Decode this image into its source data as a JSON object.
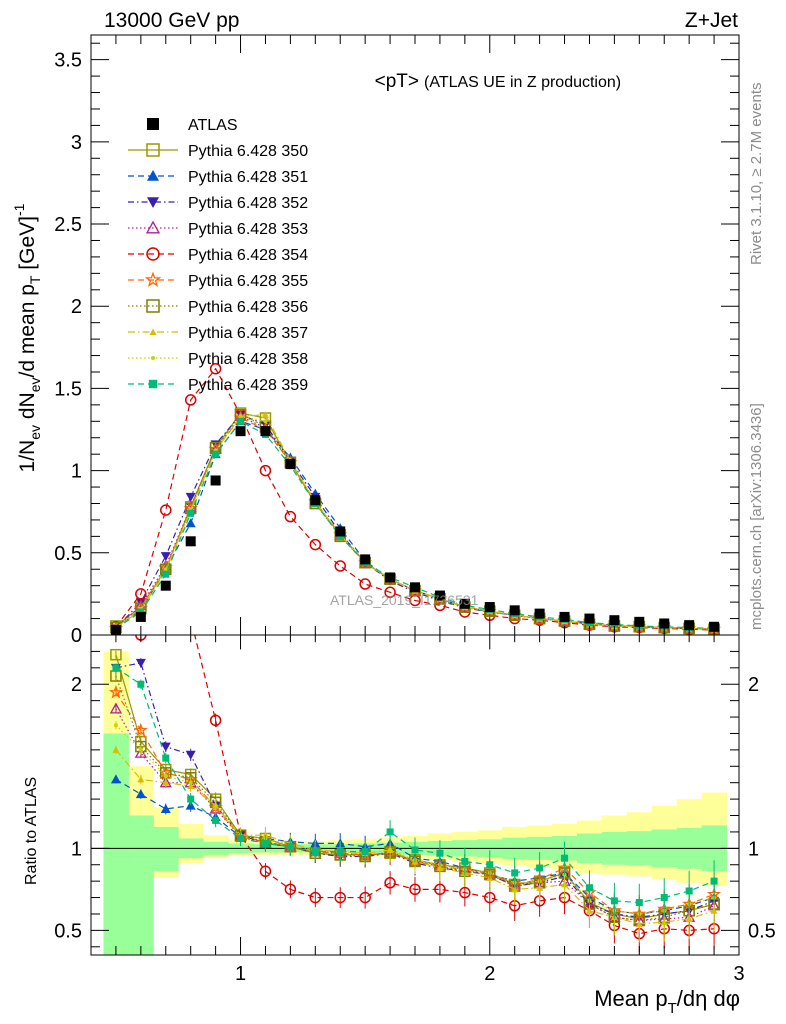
{
  "header": {
    "left": "13000 GeV pp",
    "right": "Z+Jet",
    "plot_title": "<pT>",
    "plot_subtitle": "(ATLAS UE in Z production)",
    "watermark": "ATLAS_2019_I1736531"
  },
  "side_labels": {
    "rivet": "Rivet 3.1.10, ≥ 2.7M events",
    "mcplots": "mcplots.cern.ch [arXiv:1306.3436]"
  },
  "axes": {
    "ylabel_top": "1/N_ev dN_ev/d mean p_T [GeV]^-1",
    "ylabel_top_parts": {
      "a": "1/N",
      "b": "ev",
      "c": " dN",
      "d": "ev",
      "e": "/d mean p",
      "f": "T",
      "g": " [GeV]",
      "h": "-1"
    },
    "ylabel_bottom": "Ratio to ATLAS",
    "xlabel": "Mean p_T/dη dφ",
    "xlabel_parts": {
      "a": "Mean p",
      "b": "T",
      "c": "/dη dφ"
    }
  },
  "chart_data": {
    "type": "scatter",
    "x": [
      0.5,
      0.6,
      0.7,
      0.8,
      0.9,
      1.0,
      1.1,
      1.2,
      1.3,
      1.4,
      1.5,
      1.6,
      1.7,
      1.8,
      1.9,
      2.0,
      2.1,
      2.2,
      2.3,
      2.4,
      2.5,
      2.6,
      2.7,
      2.8,
      2.9
    ],
    "xlim": [
      0.4,
      3.0
    ],
    "xticks": [
      1,
      2,
      3
    ],
    "ylim_main": [
      0,
      3.65
    ],
    "yticks_main": [
      0,
      0.5,
      1,
      1.5,
      2,
      2.5,
      3,
      3.5
    ],
    "ytick_labels_main": [
      "0",
      "0.5",
      "1",
      "1.5",
      "2",
      "2.5",
      "3",
      "3.5"
    ],
    "ylim_ratio": [
      0.35,
      2.3
    ],
    "yticks_ratio": [
      0.5,
      1,
      2
    ],
    "ytick_labels_ratio": [
      "0.5",
      "1",
      "2"
    ],
    "data": {
      "name": "ATLAS",
      "values": [
        0.03,
        0.11,
        0.3,
        0.57,
        0.94,
        1.24,
        1.24,
        1.04,
        0.82,
        0.63,
        0.46,
        0.35,
        0.29,
        0.24,
        0.19,
        0.17,
        0.15,
        0.13,
        0.11,
        0.1,
        0.09,
        0.08,
        0.07,
        0.06,
        0.05
      ]
    },
    "band_green": {
      "lo": [
        0.35,
        0.35,
        0.86,
        0.94,
        0.96,
        0.97,
        0.975,
        0.975,
        0.975,
        0.975,
        0.97,
        0.965,
        0.96,
        0.955,
        0.95,
        0.945,
        0.935,
        0.93,
        0.925,
        0.91,
        0.9,
        0.895,
        0.885,
        0.875,
        0.86
      ],
      "hi": [
        1.7,
        1.2,
        1.13,
        1.06,
        1.04,
        1.03,
        1.025,
        1.025,
        1.025,
        1.025,
        1.03,
        1.035,
        1.04,
        1.045,
        1.05,
        1.055,
        1.065,
        1.07,
        1.075,
        1.09,
        1.1,
        1.105,
        1.115,
        1.125,
        1.14
      ]
    },
    "band_yellow": {
      "lo": [
        0.35,
        0.71,
        0.82,
        0.91,
        0.94,
        0.955,
        0.96,
        0.96,
        0.96,
        0.96,
        0.955,
        0.95,
        0.94,
        0.93,
        0.92,
        0.91,
        0.895,
        0.88,
        0.87,
        0.85,
        0.84,
        0.83,
        0.81,
        0.79,
        0.77
      ],
      "hi": [
        2.2,
        1.5,
        1.25,
        1.15,
        1.08,
        1.05,
        1.045,
        1.045,
        1.045,
        1.05,
        1.055,
        1.065,
        1.075,
        1.09,
        1.1,
        1.11,
        1.13,
        1.14,
        1.15,
        1.17,
        1.2,
        1.22,
        1.26,
        1.3,
        1.34
      ]
    },
    "series": [
      {
        "name": "Pythia 6.428 350",
        "color": "#999900",
        "dash": "solid",
        "marker": "square-open",
        "values": [
          0.055,
          0.17,
          0.4,
          0.78,
          1.14,
          1.35,
          1.32,
          1.05,
          0.8,
          0.61,
          0.44,
          0.34,
          0.27,
          0.22,
          0.17,
          0.145,
          0.12,
          0.1,
          0.085,
          0.065,
          0.055,
          0.05,
          0.045,
          0.04,
          0.035
        ],
        "ratio": [
          2.18,
          1.65,
          1.48,
          1.45,
          1.3,
          1.08,
          1.06,
          1.01,
          0.97,
          0.96,
          0.96,
          0.97,
          0.93,
          0.9,
          0.88,
          0.85,
          0.78,
          0.8,
          0.85,
          0.67,
          0.6,
          0.57,
          0.6,
          0.62,
          0.66
        ]
      },
      {
        "name": "Pythia 6.428 351",
        "color": "#0055cc",
        "dash": "6,4",
        "marker": "triangle-up",
        "values": [
          0.045,
          0.15,
          0.4,
          0.68,
          1.1,
          1.3,
          1.25,
          1.08,
          0.86,
          0.65,
          0.45,
          0.34,
          0.27,
          0.22,
          0.17,
          0.14,
          0.12,
          0.1,
          0.085,
          0.07,
          0.06,
          0.05,
          0.045,
          0.04,
          0.035
        ],
        "ratio": [
          1.42,
          1.33,
          1.24,
          1.26,
          1.19,
          1.07,
          1.06,
          1.04,
          1.03,
          1.03,
          1.01,
          1.03,
          0.94,
          0.92,
          0.88,
          0.84,
          0.8,
          0.82,
          0.85,
          0.7,
          0.62,
          0.6,
          0.62,
          0.65,
          0.7
        ]
      },
      {
        "name": "Pythia 6.428 352",
        "color": "#3a1faf",
        "dash": "6,3,1.5,3",
        "marker": "triangle-down",
        "values": [
          0.04,
          0.2,
          0.48,
          0.84,
          1.16,
          1.34,
          1.28,
          1.06,
          0.84,
          0.62,
          0.44,
          0.33,
          0.26,
          0.21,
          0.165,
          0.14,
          0.12,
          0.1,
          0.085,
          0.065,
          0.055,
          0.05,
          0.045,
          0.04,
          0.035
        ],
        "ratio": [
          2.1,
          2.13,
          1.62,
          1.57,
          1.26,
          1.08,
          1.03,
          1.01,
          0.97,
          0.95,
          0.95,
          0.97,
          0.91,
          0.88,
          0.86,
          0.84,
          0.77,
          0.79,
          0.83,
          0.66,
          0.6,
          0.58,
          0.6,
          0.62,
          0.68
        ]
      },
      {
        "name": "Pythia 6.428 353",
        "color": "#b01e92",
        "dash": "1.5,2.5",
        "marker": "triangle-open",
        "values": [
          0.04,
          0.18,
          0.42,
          0.78,
          1.13,
          1.33,
          1.26,
          1.05,
          0.81,
          0.61,
          0.44,
          0.34,
          0.27,
          0.22,
          0.17,
          0.145,
          0.12,
          0.1,
          0.085,
          0.065,
          0.055,
          0.05,
          0.045,
          0.04,
          0.035
        ],
        "ratio": [
          1.85,
          1.58,
          1.4,
          1.4,
          1.24,
          1.07,
          1.03,
          1.01,
          0.98,
          0.97,
          0.96,
          0.97,
          0.92,
          0.9,
          0.87,
          0.84,
          0.78,
          0.79,
          0.8,
          0.66,
          0.58,
          0.56,
          0.57,
          0.58,
          0.65
        ]
      },
      {
        "name": "Pythia 6.428 354",
        "color": "#dd0000",
        "dash": "6,4",
        "marker": "circle-open",
        "values": [
          0.05,
          0.25,
          0.76,
          1.43,
          1.62,
          1.34,
          1.0,
          0.72,
          0.55,
          0.42,
          0.31,
          0.26,
          0.21,
          0.18,
          0.14,
          0.12,
          0.1,
          0.09,
          0.075,
          0.06,
          0.05,
          0.045,
          0.04,
          0.035,
          0.03
        ],
        "ratio": [
          2.4,
          2.3,
          2.4,
          2.4,
          1.78,
          1.08,
          0.86,
          0.75,
          0.7,
          0.7,
          0.7,
          0.79,
          0.75,
          0.75,
          0.73,
          0.7,
          0.65,
          0.68,
          0.7,
          0.62,
          0.53,
          0.48,
          0.51,
          0.5,
          0.51
        ]
      },
      {
        "name": "Pythia 6.428 355",
        "color": "#ff6600",
        "dash": "6,4",
        "marker": "star",
        "values": [
          0.04,
          0.16,
          0.41,
          0.77,
          1.13,
          1.32,
          1.25,
          1.05,
          0.81,
          0.61,
          0.44,
          0.34,
          0.27,
          0.22,
          0.17,
          0.145,
          0.12,
          0.1,
          0.085,
          0.065,
          0.055,
          0.05,
          0.045,
          0.04,
          0.035
        ],
        "ratio": [
          1.95,
          1.72,
          1.46,
          1.42,
          1.25,
          1.07,
          1.04,
          1.01,
          0.98,
          0.97,
          0.96,
          0.97,
          0.92,
          0.89,
          0.87,
          0.85,
          0.78,
          0.81,
          0.88,
          0.73,
          0.62,
          0.6,
          0.63,
          0.66,
          0.72
        ]
      },
      {
        "name": "Pythia 6.428 356",
        "color": "#7f7f00",
        "dash": "1.5,2.5",
        "marker": "square-open",
        "values": [
          0.045,
          0.16,
          0.4,
          0.77,
          1.14,
          1.34,
          1.27,
          1.05,
          0.8,
          0.6,
          0.44,
          0.34,
          0.27,
          0.22,
          0.17,
          0.145,
          0.12,
          0.1,
          0.085,
          0.065,
          0.055,
          0.05,
          0.045,
          0.04,
          0.035
        ],
        "ratio": [
          2.05,
          1.62,
          1.46,
          1.43,
          1.28,
          1.08,
          1.04,
          1.01,
          0.97,
          0.96,
          0.95,
          0.98,
          0.92,
          0.89,
          0.86,
          0.84,
          0.77,
          0.79,
          0.85,
          0.66,
          0.58,
          0.56,
          0.58,
          0.62,
          0.66
        ]
      },
      {
        "name": "Pythia 6.428 357",
        "color": "#d9bb00",
        "dash": "7,3,1.5,3",
        "marker": "tri-small",
        "values": [
          0.045,
          0.15,
          0.39,
          0.76,
          1.12,
          1.33,
          1.34,
          1.06,
          0.81,
          0.61,
          0.44,
          0.34,
          0.27,
          0.22,
          0.17,
          0.145,
          0.12,
          0.1,
          0.085,
          0.065,
          0.055,
          0.05,
          0.045,
          0.04,
          0.035
        ],
        "ratio": [
          1.6,
          1.42,
          1.4,
          1.38,
          1.26,
          1.08,
          1.08,
          1.03,
          0.99,
          0.98,
          0.97,
          0.99,
          0.92,
          0.88,
          0.85,
          0.82,
          0.75,
          0.76,
          0.78,
          0.62,
          0.58,
          0.54,
          0.55,
          0.57,
          0.62
        ]
      },
      {
        "name": "Pythia 6.428 358",
        "color": "#c8d400",
        "dash": "1.5,2.5",
        "marker": "dot",
        "values": [
          0.045,
          0.16,
          0.4,
          0.76,
          1.12,
          1.33,
          1.3,
          1.05,
          0.81,
          0.61,
          0.44,
          0.34,
          0.27,
          0.22,
          0.17,
          0.145,
          0.12,
          0.1,
          0.085,
          0.065,
          0.055,
          0.05,
          0.045,
          0.04,
          0.035
        ],
        "ratio": [
          1.75,
          1.6,
          1.44,
          1.4,
          1.26,
          1.07,
          1.06,
          1.02,
          0.99,
          0.98,
          0.97,
          0.99,
          0.93,
          0.9,
          0.87,
          0.85,
          0.79,
          0.8,
          0.84,
          0.68,
          0.62,
          0.6,
          0.62,
          0.66,
          0.7
        ]
      },
      {
        "name": "Pythia 6.428 359",
        "color": "#00bb77",
        "dash": "6,4",
        "marker": "square-filled",
        "values": [
          0.04,
          0.14,
          0.37,
          0.74,
          1.1,
          1.3,
          1.22,
          1.03,
          0.8,
          0.6,
          0.44,
          0.35,
          0.29,
          0.23,
          0.18,
          0.155,
          0.13,
          0.11,
          0.095,
          0.075,
          0.065,
          0.055,
          0.05,
          0.045,
          0.04
        ],
        "ratio": [
          2.1,
          2.0,
          1.55,
          1.3,
          1.17,
          1.06,
          1.03,
          1.01,
          0.98,
          0.98,
          0.98,
          1.1,
          0.99,
          0.97,
          0.92,
          0.9,
          0.85,
          0.88,
          0.94,
          0.76,
          0.68,
          0.67,
          0.7,
          0.74,
          0.8
        ]
      }
    ]
  }
}
